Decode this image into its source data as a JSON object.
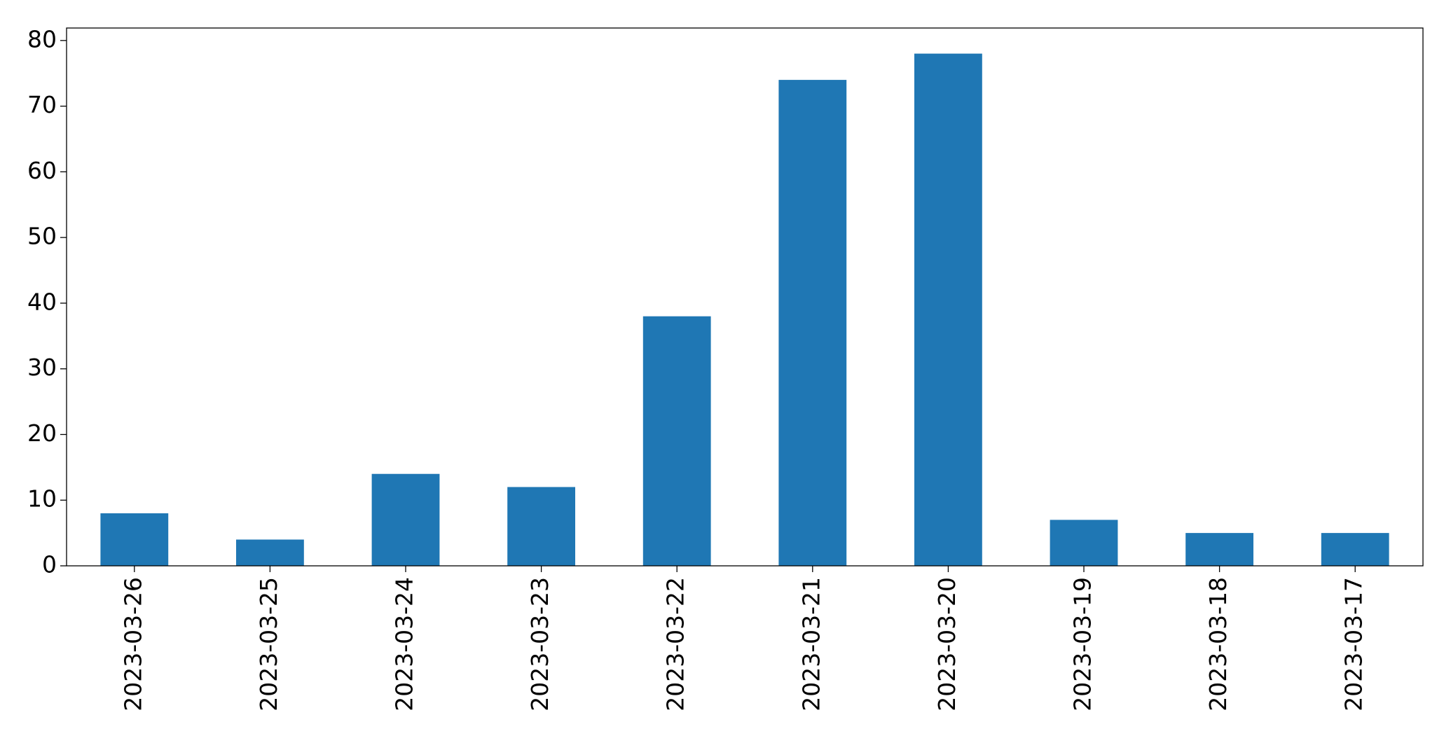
{
  "chart_data": {
    "type": "bar",
    "categories": [
      "2023-03-26",
      "2023-03-25",
      "2023-03-24",
      "2023-03-23",
      "2023-03-22",
      "2023-03-21",
      "2023-03-20",
      "2023-03-19",
      "2023-03-18",
      "2023-03-17"
    ],
    "values": [
      8,
      4,
      14,
      12,
      38,
      74,
      78,
      7,
      5,
      5
    ],
    "color": "#1f77b4",
    "ylim": [
      0,
      81.9
    ],
    "yticks": [
      0,
      10,
      20,
      30,
      40,
      50,
      60,
      70,
      80
    ],
    "grid": false
  }
}
